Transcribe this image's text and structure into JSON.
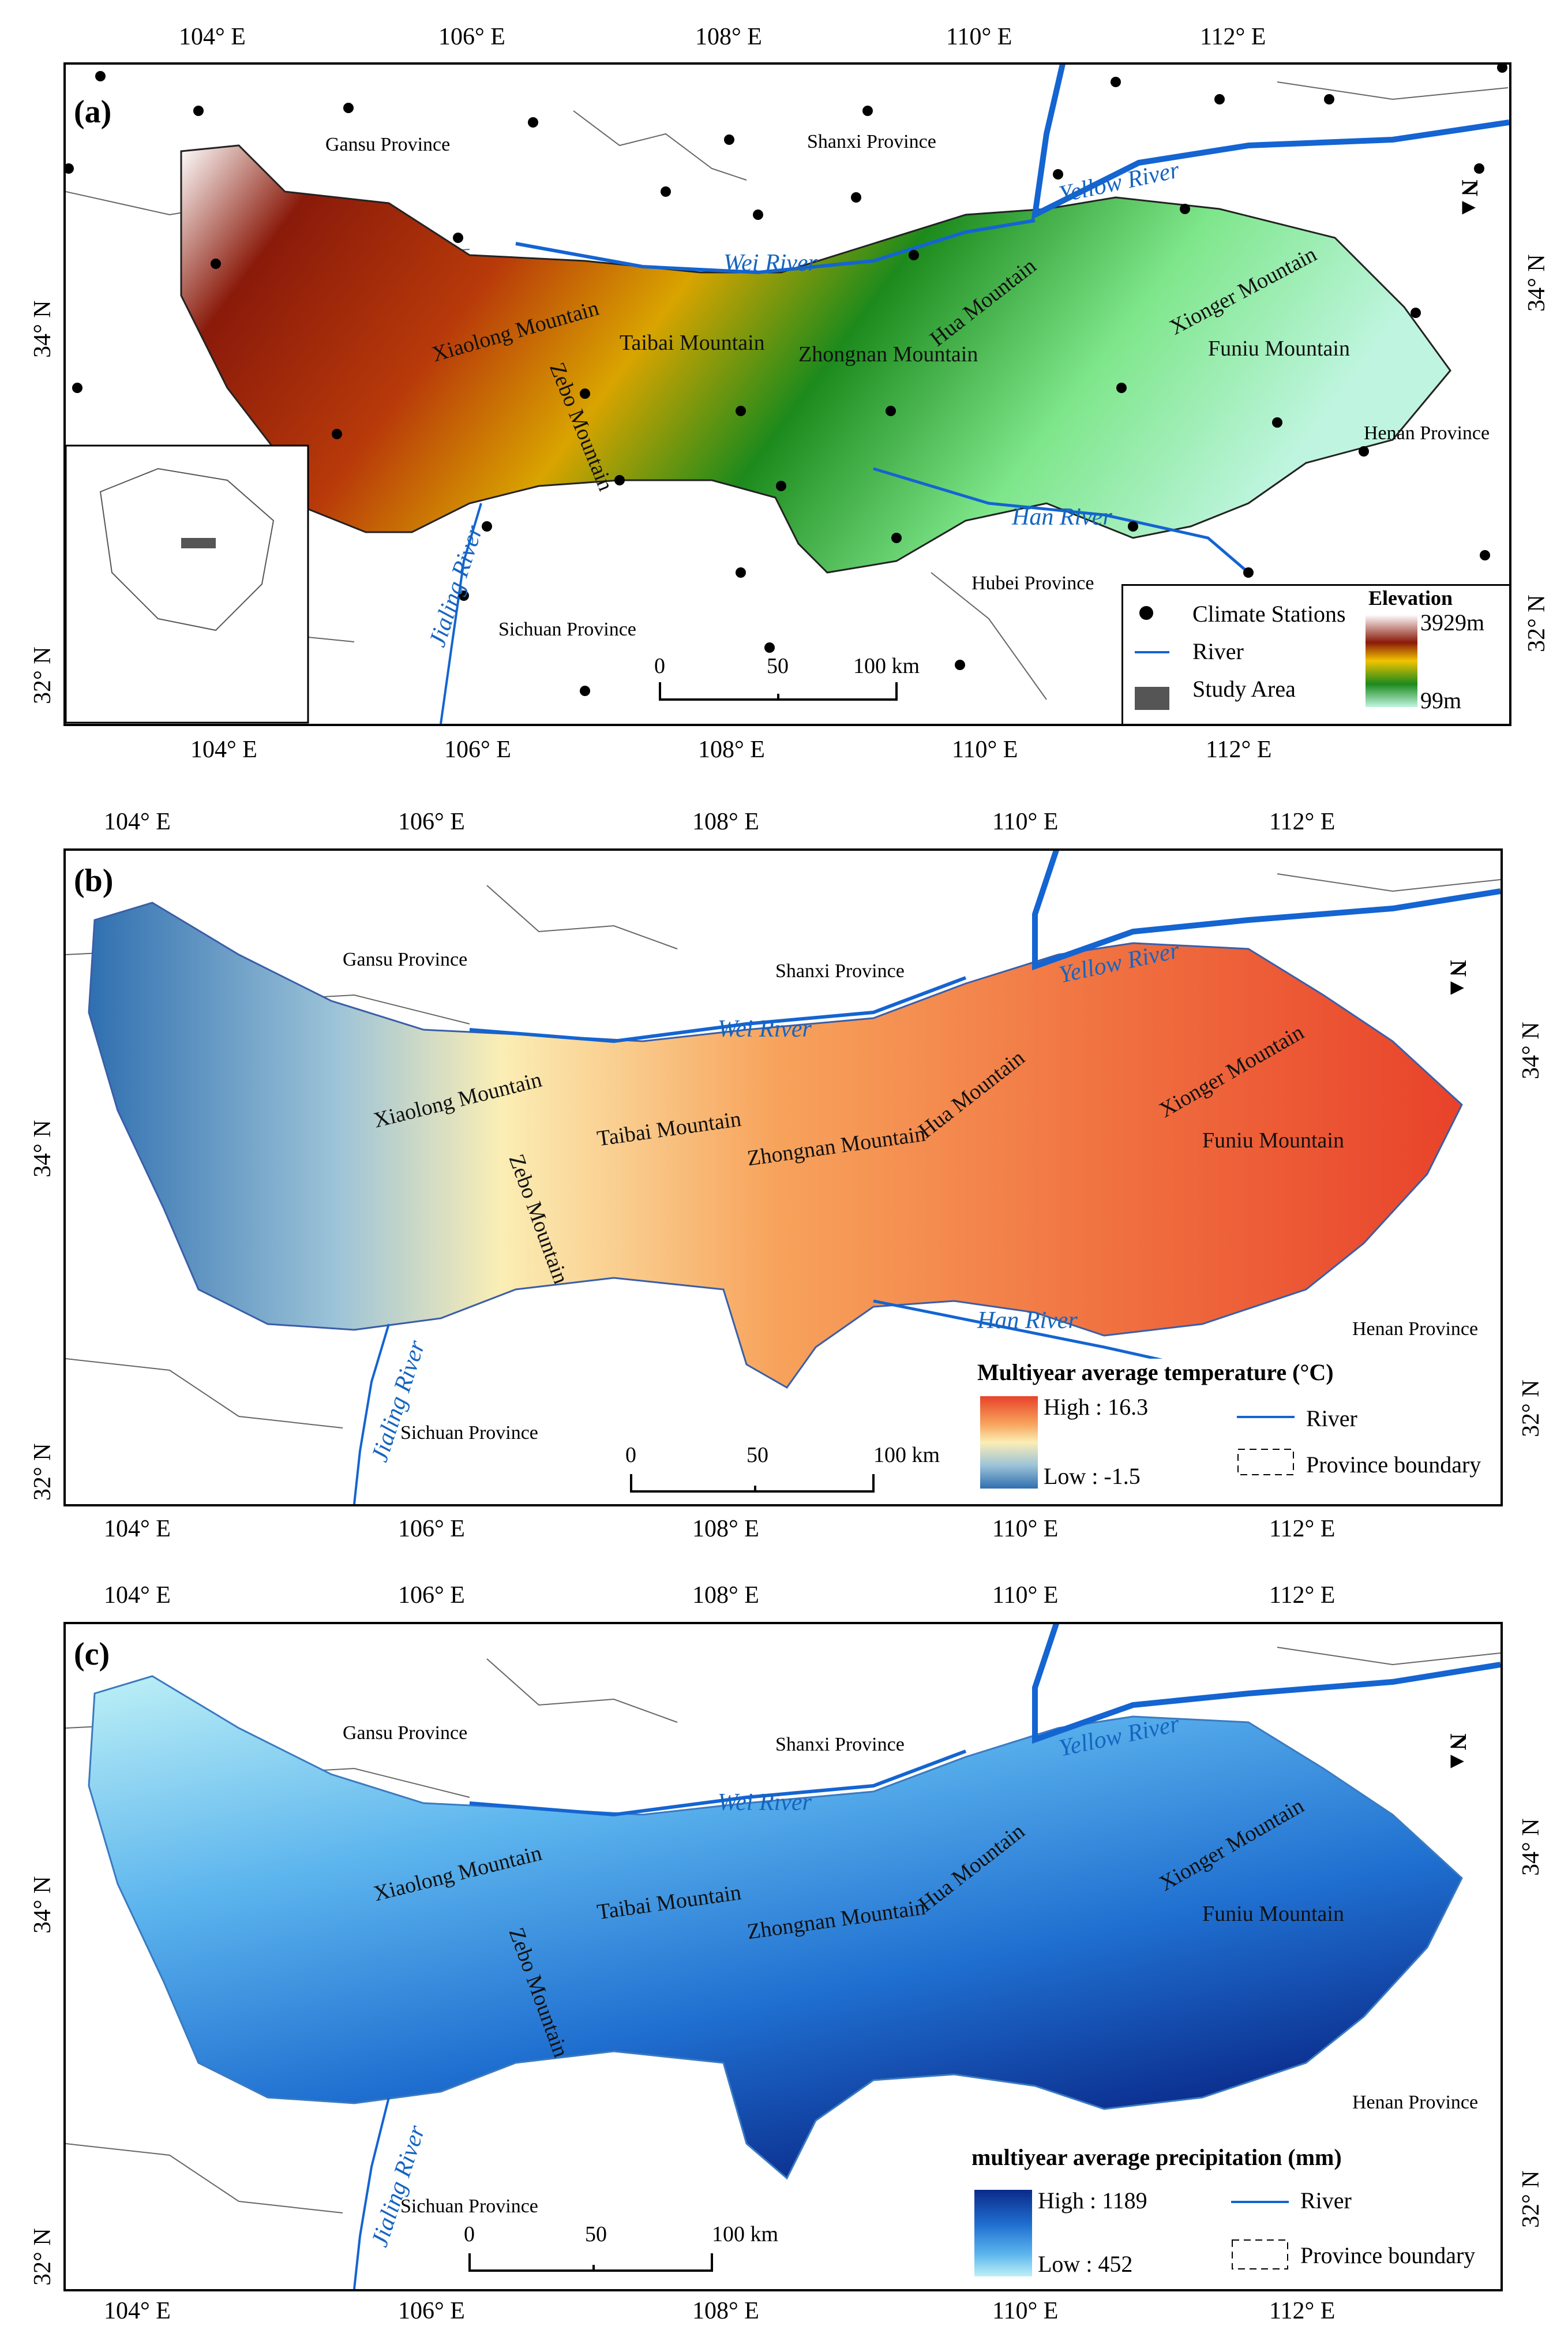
{
  "graticule": {
    "lon_top": [
      "104° E",
      "106° E",
      "108° E",
      "110° E",
      "112° E"
    ],
    "lon_bottom": [
      "104° E",
      "106° E",
      "108° E",
      "110° E",
      "112° E"
    ],
    "lat_left": [
      "32° N",
      "34° N"
    ],
    "lat_right": [
      "32° N",
      "34° N"
    ]
  },
  "panels": [
    {
      "id": "a",
      "label": "(a)",
      "provinces": [
        "Gansu Province",
        "Shanxi Province",
        "Henan Province",
        "Hubei Province",
        "Sichuan Province"
      ],
      "rivers": [
        "Yellow River",
        "Wei River",
        "Han River",
        "Jialing River"
      ],
      "mountains": [
        "Xiaolong Mountain",
        "Taibai Mountain",
        "Zebo Mountain",
        "Zhongnan Mountain",
        "Hua Mountain",
        "Xionger Mountain",
        "Funiu Mountain"
      ],
      "scale": {
        "zero": "0",
        "mid": "50",
        "max": "100 km"
      },
      "legend": {
        "climate_stations": "Climate Stations",
        "river": "River",
        "study_area": "Study Area",
        "title": "Elevation",
        "high": "3929m",
        "low": "99m"
      },
      "colors": {
        "ramp": [
          "#ffffff",
          "#8a1a0a",
          "#b83a0a",
          "#f2c300",
          "#1c8a1c",
          "#7ee68a",
          "#bff5e0"
        ]
      }
    },
    {
      "id": "b",
      "label": "(b)",
      "provinces": [
        "Gansu Province",
        "Shanxi Province",
        "Henan Province",
        "Sichuan Province"
      ],
      "rivers": [
        "Yellow River",
        "Wei River",
        "Han River",
        "Jialing River"
      ],
      "mountains": [
        "Xiaolong Mountain",
        "Taibai Mountain",
        "Zebo Mountain",
        "Zhongnan Mountain",
        "Hua Mountain",
        "Xionger Mountain",
        "Funiu Mountain"
      ],
      "scale": {
        "zero": "0",
        "mid": "50",
        "max": "100 km"
      },
      "legend": {
        "title": "Multiyear average temperature (°C)",
        "high": "High : 16.3",
        "low": "Low : -1.5",
        "river": "River",
        "boundary": "Province boundary"
      },
      "colors": {
        "ramp": [
          "#e8422a",
          "#f7a35c",
          "#fbeeb5",
          "#9cc3d8",
          "#2f6fb0"
        ]
      }
    },
    {
      "id": "c",
      "label": "(c)",
      "provinces": [
        "Gansu Province",
        "Shanxi Province",
        "Henan Province",
        "Sichuan Province"
      ],
      "rivers": [
        "Yellow River",
        "Wei River",
        "Jialing River"
      ],
      "mountains": [
        "Xiaolong Mountain",
        "Taibai Mountain",
        "Zebo Mountain",
        "Zhongnan Mountain",
        "Hua Mountain",
        "Xionger Mountain",
        "Funiu Mountain"
      ],
      "scale": {
        "zero": "0",
        "mid": "50",
        "max": "100 km"
      },
      "legend": {
        "title": "multiyear average precipitation (mm)",
        "high": "High : 1189",
        "low": "Low : 452",
        "river": "River",
        "boundary": "Province boundary"
      },
      "colors": {
        "ramp": [
          "#0a2a8a",
          "#1f6fd0",
          "#5eb6ee",
          "#bdf0f6"
        ]
      }
    }
  ],
  "north_symbol": "N"
}
